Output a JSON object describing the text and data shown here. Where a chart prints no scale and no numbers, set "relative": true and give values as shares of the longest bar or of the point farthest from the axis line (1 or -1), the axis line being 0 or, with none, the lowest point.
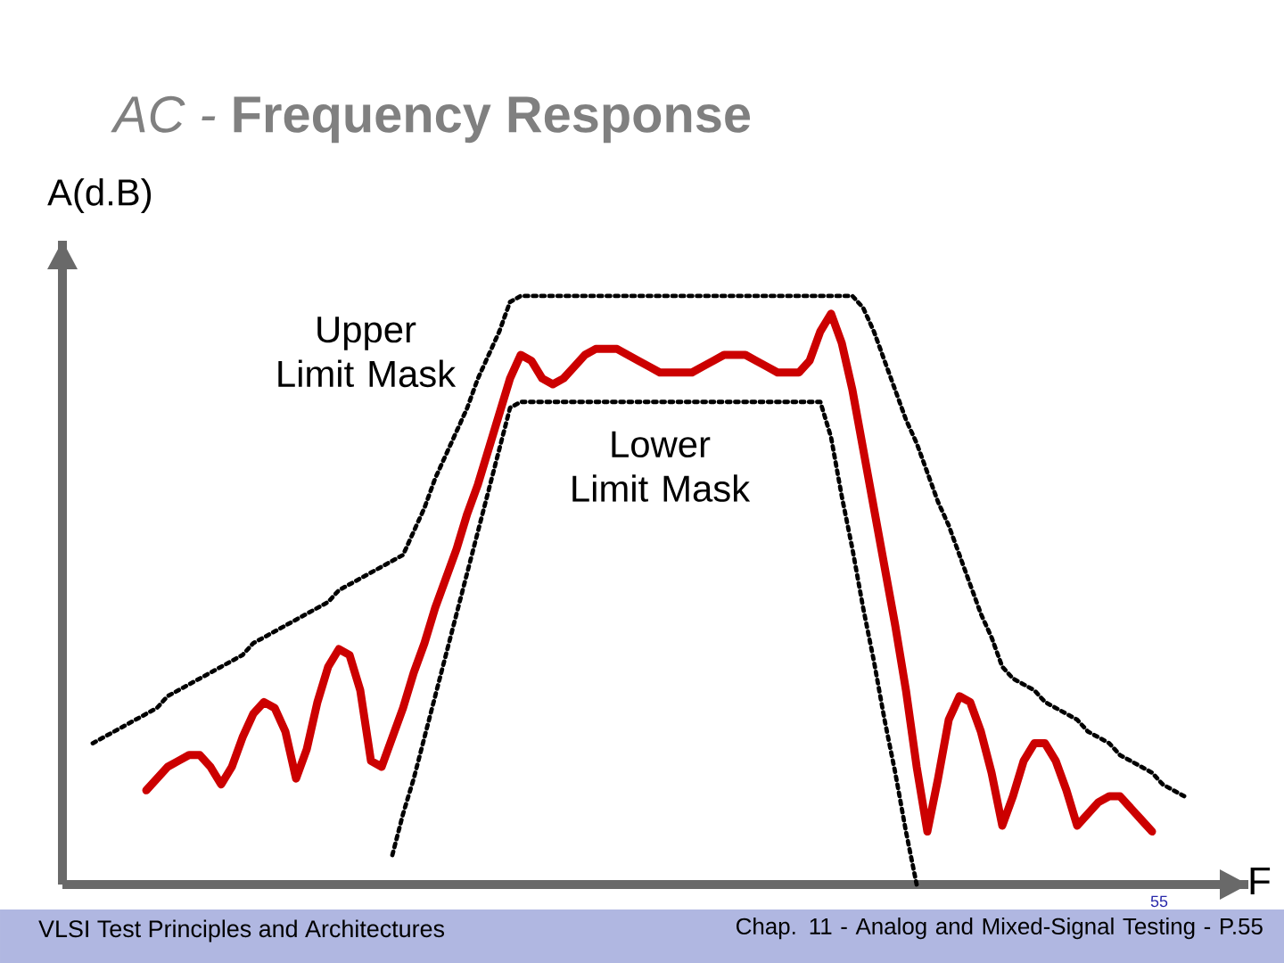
{
  "chart_data": {
    "type": "line",
    "title": "*AC -* **Frequency Response**",
    "xlabel": "F",
    "ylabel": "A(d.B)",
    "relative": true,
    "categories": [
      null,
      null,
      null,
      null,
      null,
      null,
      null,
      null,
      null,
      null,
      null,
      null,
      null,
      null,
      null,
      null,
      null,
      null,
      null,
      null,
      null,
      null,
      null,
      null,
      null,
      null,
      null,
      null,
      null,
      null,
      null,
      null,
      null,
      null,
      null,
      null,
      null,
      null,
      null,
      null,
      null,
      null,
      null,
      null,
      null,
      null,
      null,
      null,
      null,
      null,
      null,
      null,
      null,
      null,
      null,
      null,
      null,
      null,
      null,
      null,
      null,
      null,
      null,
      null,
      null,
      null,
      null,
      null,
      null,
      null,
      null,
      null,
      null,
      null,
      null,
      null,
      null,
      null,
      null,
      null,
      null,
      null,
      null,
      null,
      null,
      null,
      null,
      null,
      null,
      null,
      null,
      null,
      null,
      null,
      null,
      null,
      null,
      null,
      null,
      null,
      null,
      null,
      null
    ],
    "series": [
      {
        "name": "Upper Limit Mask",
        "color": "#000000",
        "line_style": "dotted",
        "values": [
          0.24,
          0.25,
          0.26,
          0.27,
          0.28,
          0.29,
          0.3,
          0.32,
          0.33,
          0.34,
          0.35,
          0.36,
          0.37,
          0.38,
          0.39,
          0.41,
          0.42,
          0.43,
          0.44,
          0.45,
          0.46,
          0.47,
          0.48,
          0.5,
          0.51,
          0.52,
          0.53,
          0.54,
          0.55,
          0.56,
          0.6,
          0.64,
          0.69,
          0.73,
          0.77,
          0.81,
          0.86,
          0.9,
          0.94,
          0.99,
          1,
          1,
          1,
          1,
          1,
          1,
          1,
          1,
          1,
          1,
          1,
          1,
          1,
          1,
          1,
          1,
          1,
          1,
          1,
          1,
          1,
          1,
          1,
          1,
          1,
          1,
          1,
          1,
          1,
          1,
          1,
          1,
          0.98,
          0.94,
          0.89,
          0.84,
          0.79,
          0.75,
          0.7,
          0.65,
          0.61,
          0.56,
          0.51,
          0.46,
          0.42,
          0.37,
          0.35,
          0.34,
          0.33,
          0.31,
          0.3,
          0.29,
          0.28,
          0.26,
          0.25,
          0.24,
          0.22,
          0.21,
          0.2,
          0.19,
          0.17,
          0.16,
          0.15
        ]
      },
      {
        "name": "Lower Limit Mask",
        "color": "#000000",
        "line_style": "dotted",
        "values": [
          null,
          null,
          null,
          null,
          null,
          null,
          null,
          null,
          null,
          null,
          null,
          null,
          null,
          null,
          null,
          null,
          null,
          null,
          null,
          null,
          null,
          null,
          null,
          null,
          null,
          null,
          null,
          null,
          0.05,
          0.12,
          0.18,
          0.25,
          0.32,
          0.39,
          0.46,
          0.53,
          0.6,
          0.67,
          0.74,
          0.81,
          0.82,
          0.82,
          0.82,
          0.82,
          0.82,
          0.82,
          0.82,
          0.82,
          0.82,
          0.82,
          0.82,
          0.82,
          0.82,
          0.82,
          0.82,
          0.82,
          0.82,
          0.82,
          0.82,
          0.82,
          0.82,
          0.82,
          0.82,
          0.82,
          0.82,
          0.82,
          0.82,
          0.82,
          0.82,
          0.76,
          0.66,
          0.57,
          0.47,
          0.38,
          0.28,
          0.19,
          0.09,
          0,
          null,
          null,
          null,
          null,
          null,
          null,
          null,
          null,
          null,
          null,
          null,
          null,
          null,
          null,
          null,
          null,
          null,
          null,
          null,
          null,
          null,
          null,
          null,
          null,
          null
        ]
      },
      {
        "color": "#cc0000",
        "line_style": "solid",
        "values": [
          null,
          null,
          null,
          null,
          null,
          0.16,
          0.18,
          0.2,
          0.21,
          0.22,
          0.22,
          0.2,
          0.17,
          0.2,
          0.25,
          0.29,
          0.31,
          0.3,
          0.26,
          0.18,
          0.23,
          0.31,
          0.37,
          0.4,
          0.39,
          0.33,
          0.21,
          0.2,
          0.25,
          0.3,
          0.36,
          0.41,
          0.47,
          0.52,
          0.57,
          0.63,
          0.68,
          0.74,
          0.8,
          0.86,
          0.9,
          0.89,
          0.86,
          0.85,
          0.86,
          0.88,
          0.9,
          0.91,
          0.91,
          0.91,
          0.9,
          0.89,
          0.88,
          0.87,
          0.87,
          0.87,
          0.87,
          0.88,
          0.89,
          0.9,
          0.9,
          0.9,
          0.89,
          0.88,
          0.87,
          0.87,
          0.87,
          0.89,
          0.94,
          0.97,
          0.92,
          0.84,
          0.74,
          0.64,
          0.54,
          0.44,
          0.33,
          0.2,
          0.09,
          0.18,
          0.28,
          0.32,
          0.31,
          0.26,
          0.19,
          0.1,
          0.15,
          0.21,
          0.24,
          0.24,
          0.21,
          0.16,
          0.1,
          0.12,
          0.14,
          0.15,
          0.15,
          0.13,
          0.11,
          0.09,
          null,
          null,
          null
        ]
      }
    ],
    "annotations": [
      "VLSI Test Principles and Architectures",
      "Chap. 11 - Analog and Mixed-Signal Testing - P.55",
      "55"
    ]
  }
}
